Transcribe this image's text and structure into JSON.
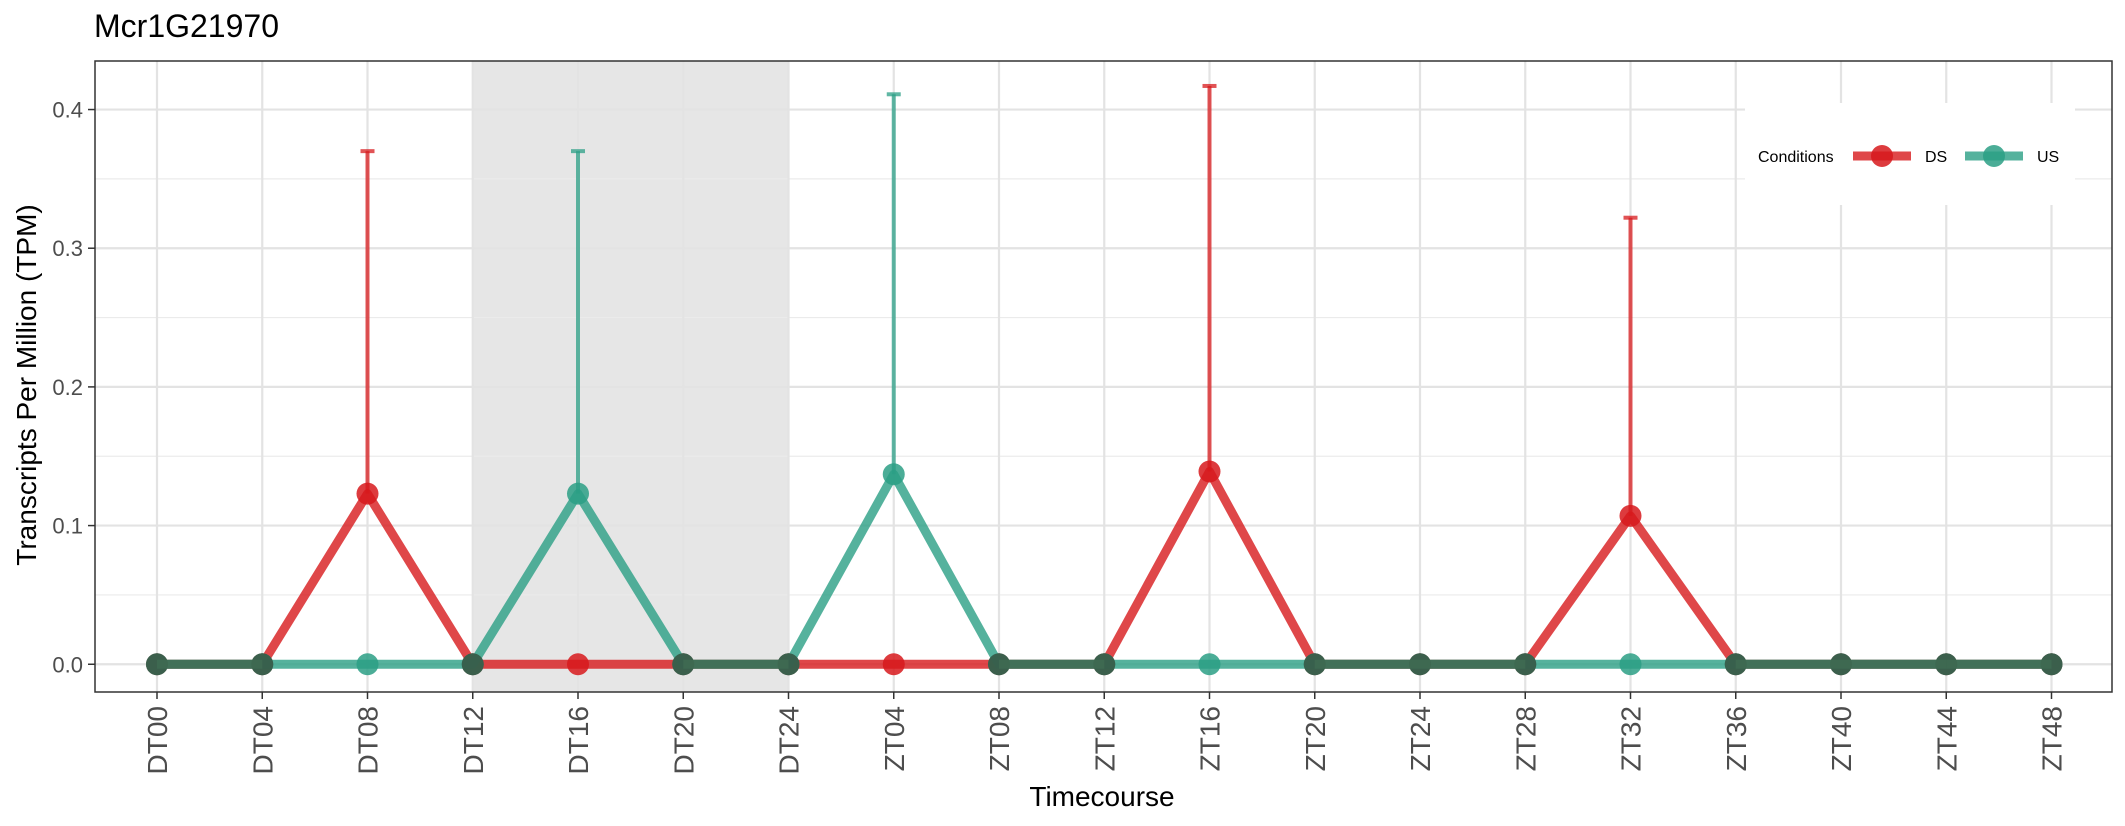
{
  "chart_data": {
    "type": "line",
    "title": "Mcr1G21970",
    "xlabel": "Timecourse",
    "ylabel": "Transcripts Per Million (TPM)",
    "categories": [
      "DT00",
      "DT04",
      "DT08",
      "DT12",
      "DT16",
      "DT20",
      "DT24",
      "ZT04",
      "ZT08",
      "ZT12",
      "ZT16",
      "ZT20",
      "ZT24",
      "ZT28",
      "ZT32",
      "ZT36",
      "ZT40",
      "ZT44",
      "ZT48"
    ],
    "ylim": [
      -0.02,
      0.435
    ],
    "yticks": [
      0.0,
      0.1,
      0.2,
      0.3,
      0.4
    ],
    "ytick_labels": [
      "0.0",
      "0.1",
      "0.2",
      "0.3",
      "0.4"
    ],
    "shaded_region": {
      "from": "DT12",
      "to": "DT24"
    },
    "grid": true,
    "legend": {
      "title": "Conditions",
      "placement": "top-right"
    },
    "series": [
      {
        "name": "DS",
        "color": "#d7191c",
        "values": [
          0,
          0,
          0.123,
          0,
          0,
          0,
          0,
          0,
          0,
          0,
          0.139,
          0,
          0,
          0,
          0.107,
          0,
          0,
          0,
          0
        ],
        "error_upper": [
          0,
          0,
          0.37,
          0,
          0,
          0,
          0,
          0,
          0,
          0,
          0.417,
          0,
          0,
          0,
          0.322,
          0,
          0,
          0,
          0
        ]
      },
      {
        "name": "US",
        "color": "#2b9f85",
        "values": [
          0,
          0,
          0,
          0,
          0.123,
          0,
          0,
          0.137,
          0,
          0,
          0,
          0,
          0,
          0,
          0,
          0,
          0,
          0,
          0
        ],
        "error_upper": [
          0,
          0,
          0,
          0,
          0.37,
          0,
          0,
          0.411,
          0,
          0,
          0,
          0,
          0,
          0,
          0,
          0,
          0,
          0,
          0
        ]
      }
    ]
  }
}
